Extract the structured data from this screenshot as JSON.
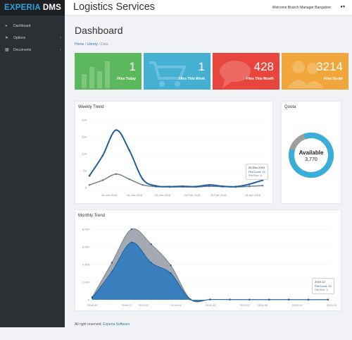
{
  "brand": {
    "part1": "EXPERIA",
    "part2": "DMS"
  },
  "sidebar": {
    "items": [
      {
        "label": "Dashboard",
        "icon": "dashboard-icon"
      },
      {
        "label": "Options",
        "icon": "wrench-icon",
        "has_submenu": true
      },
      {
        "label": "Documents",
        "icon": "documents-icon",
        "has_submenu": true
      }
    ]
  },
  "topbar": {
    "title": "Logistics Services",
    "welcome": "Welcome Branch Manager Bangalore",
    "user_icon": "user-icon"
  },
  "page": {
    "title": "Dashboard"
  },
  "breadcrumb": {
    "home": "Home",
    "library": "Library",
    "current": "Data"
  },
  "tiles": [
    {
      "value": "1",
      "label": "Files Today",
      "color": "#5cb85c"
    },
    {
      "value": "1",
      "label": "Files This Week",
      "color": "#46b0d3"
    },
    {
      "value": "428",
      "label": "Files This Month",
      "color": "#e8453c"
    },
    {
      "value": "3214",
      "label": "Files So-far",
      "color": "#f0a63a"
    }
  ],
  "weekly": {
    "title": "Weekly Trend",
    "tooltip": {
      "date": "05-Dec-2019",
      "count": "FileCount: 22",
      "size": "FileSize: 6"
    }
  },
  "quota": {
    "title": "Quota",
    "label": "Available",
    "value": "3,770",
    "available_fraction": 0.85,
    "colors": {
      "available": "#3aaed8",
      "used": "#9e9e9e"
    }
  },
  "monthly": {
    "title": "Monthly Trend",
    "tooltip": {
      "date": "2019-12",
      "count": "FileCount: 22",
      "size": "FileSize: 6"
    }
  },
  "footer": {
    "text": "All right reserved.",
    "link": "Experia Software"
  },
  "chart_data": [
    {
      "type": "line",
      "title": "Weekly Trend",
      "ylim": [
        0,
        200
      ],
      "yticks": [
        "200",
        "150",
        "100",
        "50",
        "0"
      ],
      "xticks": [
        "16-Jan-2018",
        "18-Jan-2018",
        "20-Jan-2018",
        "02-Feb-2018",
        "25-Feb-2018",
        "18-Apr-2018"
      ],
      "series": [
        {
          "name": "FileCount",
          "color": "#1f5fa0",
          "values": [
            35,
            95,
            170,
            110,
            25,
            5,
            3,
            4,
            3,
            8,
            4,
            3,
            10,
            22
          ]
        },
        {
          "name": "FileSize",
          "color": "#6e8291",
          "values": [
            8,
            22,
            40,
            25,
            8,
            3,
            2,
            2,
            2,
            4,
            3,
            2,
            4,
            6
          ]
        }
      ]
    },
    {
      "type": "area",
      "title": "Monthly Trend",
      "ylim": [
        0,
        8000
      ],
      "yticks": [
        "8,000",
        "6,000",
        "4,000",
        "2,000",
        "0"
      ],
      "xticks": [
        "2018-10",
        "2018-12",
        "2019-01",
        "2019-03",
        "2019-05",
        "2019-07",
        "2019-08",
        "2019-10",
        "2019-12"
      ],
      "series": [
        {
          "name": "FileSize",
          "color": "#9aa1a8",
          "values": [
            300,
            4200,
            8000,
            6300,
            3900,
            50,
            40,
            30,
            20,
            20,
            20,
            10,
            6
          ]
        },
        {
          "name": "FileCount",
          "color": "#2f7abf",
          "values": [
            200,
            3200,
            6500,
            4200,
            3000,
            30,
            30,
            25,
            22,
            22,
            22,
            22,
            22
          ]
        }
      ]
    }
  ]
}
